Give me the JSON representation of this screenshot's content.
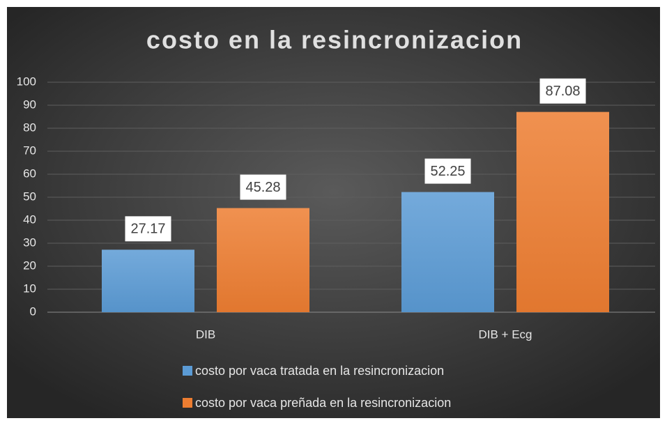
{
  "chart_data": {
    "type": "bar",
    "title": "costo en la resincronizacion",
    "categories": [
      "DIB",
      "DIB + Ecg"
    ],
    "series": [
      {
        "name": "costo por vaca tratada en la resincronizacion",
        "color": "#5b9bd5",
        "values": [
          27.17,
          52.25
        ]
      },
      {
        "name": "costo por vaca preñada en la resincronizacion",
        "color": "#ed7d31",
        "values": [
          45.28,
          87.08
        ]
      }
    ],
    "ylim": [
      0,
      100
    ],
    "yticks": [
      0,
      10,
      20,
      30,
      40,
      50,
      60,
      70,
      80,
      90,
      100
    ],
    "grid": true
  }
}
